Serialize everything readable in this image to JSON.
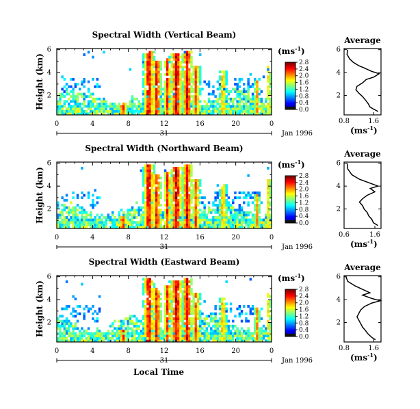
{
  "figure": {
    "shared_xlabel": "Local Time",
    "date_label": "Jan 1996",
    "day_label": "31",
    "ylabel": "Height (km)",
    "unit_label": "(ms",
    "unit_superscript": "-1",
    "avg_title": "Average",
    "avg_xlabel": "(ms",
    "colorbar_ticks": [
      "0.0",
      "0.4",
      "0.8",
      "1.2",
      "1.6",
      "2.0",
      "2.4",
      "2.8"
    ]
  },
  "chart_data": [
    {
      "type": "heatmap",
      "title": "Spectral Width (Vertical Beam)",
      "x_ticks": [
        "0",
        "4",
        "8",
        "12",
        "16",
        "20",
        "0"
      ],
      "y_ticks": [
        "2",
        "4",
        "6"
      ],
      "xlim": [
        0,
        24
      ],
      "ylim": [
        0.3,
        6.1
      ],
      "colorbar_range": [
        0.0,
        2.8
      ],
      "profile": {
        "title": "Average",
        "xlim": [
          0.8,
          1.8
        ],
        "x_ticks": [
          "0.8",
          "1.6"
        ],
        "y_ticks": [
          "2",
          "4",
          "6"
        ],
        "points": [
          [
            0.9,
            6.0
          ],
          [
            0.88,
            5.6
          ],
          [
            0.95,
            5.2
          ],
          [
            1.05,
            4.9
          ],
          [
            1.2,
            4.6
          ],
          [
            1.35,
            4.4
          ],
          [
            1.55,
            4.1
          ],
          [
            1.75,
            3.9
          ],
          [
            1.6,
            3.6
          ],
          [
            1.4,
            3.4
          ],
          [
            1.3,
            3.1
          ],
          [
            1.15,
            2.8
          ],
          [
            1.12,
            2.5
          ],
          [
            1.2,
            2.2
          ],
          [
            1.3,
            1.9
          ],
          [
            1.38,
            1.6
          ],
          [
            1.45,
            1.3
          ],
          [
            1.5,
            1.0
          ],
          [
            1.6,
            0.8
          ],
          [
            1.72,
            0.6
          ]
        ]
      }
    },
    {
      "type": "heatmap",
      "title": "Spectral Width (Northward Beam)",
      "x_ticks": [
        "0",
        "4",
        "8",
        "12",
        "16",
        "20",
        "0"
      ],
      "y_ticks": [
        "2",
        "4",
        "6"
      ],
      "xlim": [
        0,
        24
      ],
      "ylim": [
        0.3,
        6.1
      ],
      "colorbar_range": [
        0.0,
        2.8
      ],
      "profile": {
        "title": "Average",
        "xlim": [
          0.6,
          1.8
        ],
        "x_ticks": [
          "0.6",
          "1.6"
        ],
        "y_ticks": [
          "2",
          "4",
          "6"
        ],
        "points": [
          [
            0.7,
            6.0
          ],
          [
            0.72,
            5.5
          ],
          [
            0.85,
            5.0
          ],
          [
            1.1,
            4.6
          ],
          [
            1.4,
            4.3
          ],
          [
            1.7,
            4.0
          ],
          [
            1.45,
            3.8
          ],
          [
            1.6,
            3.5
          ],
          [
            1.35,
            3.2
          ],
          [
            1.2,
            2.9
          ],
          [
            1.1,
            2.6
          ],
          [
            1.2,
            2.3
          ],
          [
            1.25,
            2.0
          ],
          [
            1.35,
            1.7
          ],
          [
            1.4,
            1.4
          ],
          [
            1.5,
            1.1
          ],
          [
            1.55,
            0.8
          ],
          [
            1.7,
            0.55
          ]
        ]
      }
    },
    {
      "type": "heatmap",
      "title": "Spectral Width (Eastward Beam)",
      "x_ticks": [
        "0",
        "4",
        "8",
        "12",
        "16",
        "20",
        "0"
      ],
      "y_ticks": [
        "2",
        "4",
        "6"
      ],
      "xlim": [
        0,
        24
      ],
      "ylim": [
        0.3,
        6.1
      ],
      "colorbar_range": [
        0.0,
        2.8
      ],
      "profile": {
        "title": "Average",
        "xlim": [
          0.8,
          1.8
        ],
        "x_ticks": [
          "0.8",
          "1.6"
        ],
        "y_ticks": [
          "2",
          "4",
          "6"
        ],
        "points": [
          [
            0.85,
            6.0
          ],
          [
            0.9,
            5.6
          ],
          [
            1.1,
            5.2
          ],
          [
            1.3,
            4.9
          ],
          [
            1.5,
            4.6
          ],
          [
            1.3,
            4.4
          ],
          [
            1.55,
            4.1
          ],
          [
            1.78,
            3.9
          ],
          [
            1.55,
            3.7
          ],
          [
            1.35,
            3.4
          ],
          [
            1.25,
            3.1
          ],
          [
            1.2,
            2.8
          ],
          [
            1.15,
            2.5
          ],
          [
            1.2,
            2.2
          ],
          [
            1.25,
            1.9
          ],
          [
            1.3,
            1.6
          ],
          [
            1.38,
            1.3
          ],
          [
            1.45,
            1.0
          ],
          [
            1.55,
            0.7
          ],
          [
            1.65,
            0.5
          ]
        ]
      }
    }
  ]
}
